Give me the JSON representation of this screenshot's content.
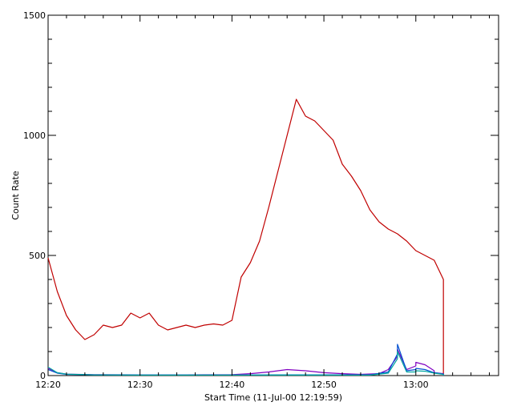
{
  "chart_data": {
    "type": "line",
    "xlabel": "Start Time (11-Jul-00 12:19:59)",
    "ylabel": "Count Rate",
    "x_unit": "time",
    "xlim": [
      "12:20",
      "13:09"
    ],
    "ylim": [
      0,
      1500
    ],
    "x_ticks": [
      "12:20",
      "12:30",
      "12:40",
      "12:50",
      "13:00"
    ],
    "y_ticks": [
      "0",
      "500",
      "1000",
      "1500"
    ],
    "grid": false,
    "legend": "none",
    "series": [
      {
        "color": "#c00000",
        "x": [
          "12:20",
          "12:21",
          "12:22",
          "12:23",
          "12:24",
          "12:25",
          "12:26",
          "12:27",
          "12:28",
          "12:29",
          "12:30",
          "12:31",
          "12:32",
          "12:33",
          "12:34",
          "12:35",
          "12:36",
          "12:37",
          "12:38",
          "12:39",
          "12:40",
          "12:41",
          "12:42",
          "12:43",
          "12:44",
          "12:45",
          "12:46",
          "12:47",
          "12:48",
          "12:49",
          "12:50",
          "12:51",
          "12:52",
          "12:53",
          "12:54",
          "12:55",
          "12:56",
          "12:57",
          "12:58",
          "12:59",
          "13:00",
          "13:01",
          "13:02",
          "13:03",
          "13:03"
        ],
        "y": [
          490,
          350,
          250,
          190,
          150,
          170,
          210,
          200,
          210,
          260,
          240,
          260,
          210,
          190,
          200,
          210,
          200,
          210,
          215,
          210,
          230,
          410,
          470,
          560,
          700,
          850,
          1000,
          1150,
          1080,
          1060,
          1020,
          980,
          880,
          830,
          770,
          690,
          640,
          610,
          590,
          560,
          520,
          500,
          480,
          400,
          0
        ]
      },
      {
        "color": "#8000c0",
        "x": [
          "12:20",
          "12:21",
          "12:22",
          "12:25",
          "12:30",
          "12:35",
          "12:40",
          "12:42",
          "12:44",
          "12:46",
          "12:48",
          "12:50",
          "12:52",
          "12:54",
          "12:56",
          "12:57",
          "12:58",
          "12:58",
          "12:59",
          "13:00",
          "13:00",
          "13:01",
          "13:02",
          "13:02",
          "13:03",
          "13:03"
        ],
        "y": [
          30,
          12,
          6,
          4,
          3,
          3,
          4,
          8,
          15,
          25,
          20,
          12,
          8,
          5,
          8,
          25,
          80,
          110,
          25,
          40,
          55,
          45,
          20,
          12,
          8,
          0
        ]
      },
      {
        "color": "#0050d0",
        "x": [
          "12:20",
          "12:21",
          "12:22",
          "12:25",
          "12:30",
          "12:35",
          "12:40",
          "12:45",
          "12:50",
          "12:55",
          "12:57",
          "12:58",
          "12:58",
          "12:59",
          "13:00",
          "13:00",
          "13:01",
          "13:02",
          "13:03",
          "13:03"
        ],
        "y": [
          25,
          10,
          5,
          3,
          2,
          2,
          2,
          3,
          3,
          3,
          15,
          90,
          130,
          20,
          25,
          30,
          25,
          12,
          6,
          0
        ]
      },
      {
        "color": "#00a8a0",
        "x": [
          "12:20",
          "12:21",
          "12:22",
          "12:25",
          "12:30",
          "12:35",
          "12:40",
          "12:45",
          "12:50",
          "12:55",
          "12:57",
          "12:58",
          "12:58",
          "12:59",
          "13:00",
          "13:00",
          "13:01",
          "13:02",
          "13:03",
          "13:03"
        ],
        "y": [
          35,
          12,
          6,
          3,
          2,
          2,
          2,
          2,
          2,
          2,
          10,
          70,
          100,
          15,
          15,
          20,
          18,
          10,
          5,
          0
        ]
      }
    ]
  }
}
